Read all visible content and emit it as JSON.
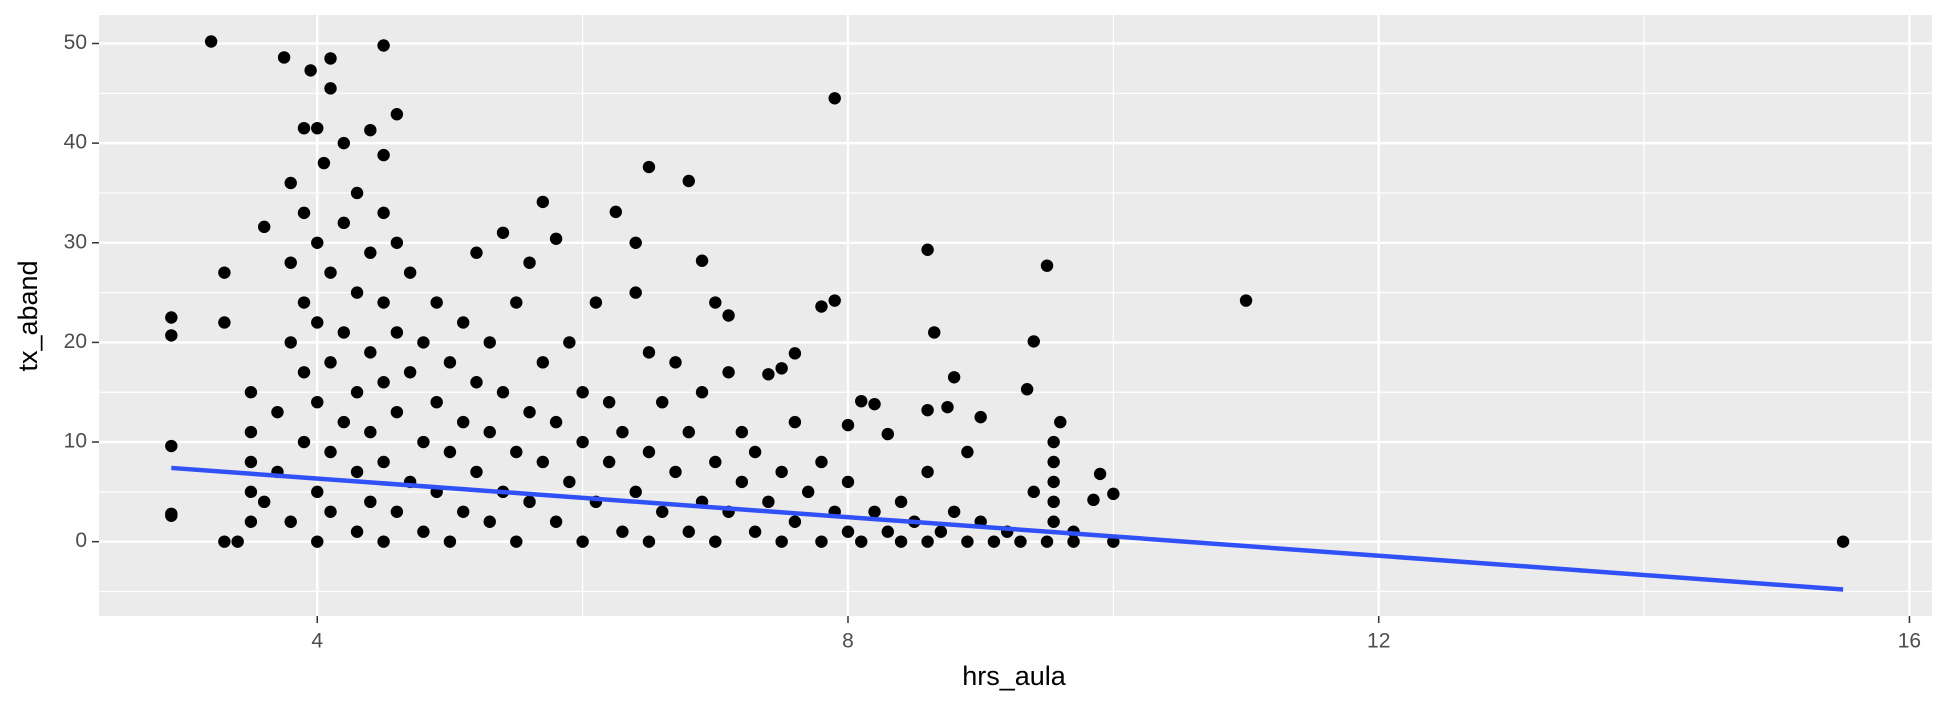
{
  "chart_data": {
    "type": "scatter",
    "x_label": "hrs_aula",
    "y_label": "tx_aband",
    "xlim": [
      2.355,
      16.17
    ],
    "ylim": [
      -7.46,
      52.86
    ],
    "xticks": [
      4,
      8,
      12,
      16
    ],
    "yticks": [
      0,
      10,
      20,
      30,
      40,
      50
    ],
    "xminor": [
      6,
      10,
      14
    ],
    "yminor": [
      -5,
      5,
      15,
      25,
      35,
      45
    ],
    "grid": true,
    "color": "#000000",
    "points": [
      [
        2.9,
        22.5
      ],
      [
        2.9,
        20.7
      ],
      [
        2.9,
        9.6
      ],
      [
        2.9,
        2.8
      ],
      [
        2.9,
        2.6
      ],
      [
        3.2,
        50.2
      ],
      [
        3.3,
        27
      ],
      [
        3.3,
        22
      ],
      [
        3.5,
        15
      ],
      [
        3.6,
        31.6
      ],
      [
        3.75,
        48.6
      ],
      [
        3.9,
        41.5
      ],
      [
        3.95,
        47.3
      ],
      [
        4.1,
        48.5
      ],
      [
        4.1,
        45.5
      ],
      [
        4.0,
        41.5
      ],
      [
        4.4,
        41.3
      ],
      [
        4.5,
        49.8
      ],
      [
        4.6,
        42.9
      ],
      [
        4.5,
        38.8
      ],
      [
        5.7,
        34.1
      ],
      [
        5.8,
        30.4
      ],
      [
        6.25,
        33.1
      ],
      [
        6.5,
        37.6
      ],
      [
        6.8,
        36.2
      ],
      [
        7.9,
        44.5
      ],
      [
        6.4,
        30
      ],
      [
        6.9,
        28.2
      ],
      [
        7.0,
        24
      ],
      [
        7.1,
        22.7
      ],
      [
        7.8,
        23.6
      ],
      [
        7.9,
        24.2
      ],
      [
        8.6,
        29.3
      ],
      [
        8.65,
        21
      ],
      [
        8.8,
        16.5
      ],
      [
        9.5,
        27.7
      ],
      [
        9.4,
        20.1
      ],
      [
        9.35,
        15.3
      ],
      [
        9.0,
        12.5
      ],
      [
        11.0,
        24.2
      ],
      [
        15.5,
        0
      ],
      [
        9.9,
        6.8
      ],
      [
        10.0,
        4.8
      ],
      [
        9.85,
        4.2
      ],
      [
        10.0,
        0
      ],
      [
        8.75,
        13.5
      ],
      [
        8.6,
        13.2
      ],
      [
        8.1,
        14.1
      ],
      [
        8.2,
        13.8
      ],
      [
        8.0,
        11.7
      ],
      [
        8.3,
        10.8
      ],
      [
        7.6,
        18.9
      ],
      [
        7.5,
        17.4
      ],
      [
        7.4,
        16.8
      ],
      [
        3.3,
        0
      ],
      [
        3.4,
        0
      ],
      [
        3.5,
        2
      ],
      [
        3.5,
        5
      ],
      [
        3.5,
        8
      ],
      [
        3.5,
        11
      ],
      [
        3.6,
        4
      ],
      [
        3.7,
        7
      ],
      [
        3.7,
        13
      ],
      [
        3.8,
        20
      ],
      [
        3.8,
        28
      ],
      [
        3.8,
        36
      ],
      [
        3.8,
        2
      ],
      [
        3.9,
        10
      ],
      [
        3.9,
        17
      ],
      [
        3.9,
        24
      ],
      [
        3.9,
        33
      ],
      [
        4.0,
        0
      ],
      [
        4.0,
        5
      ],
      [
        4.0,
        14
      ],
      [
        4.0,
        22
      ],
      [
        4.0,
        30
      ],
      [
        4.05,
        38
      ],
      [
        4.1,
        3
      ],
      [
        4.1,
        9
      ],
      [
        4.1,
        18
      ],
      [
        4.1,
        27
      ],
      [
        4.2,
        12
      ],
      [
        4.2,
        21
      ],
      [
        4.2,
        32
      ],
      [
        4.2,
        40
      ],
      [
        4.3,
        1
      ],
      [
        4.3,
        7
      ],
      [
        4.3,
        15
      ],
      [
        4.3,
        25
      ],
      [
        4.3,
        35
      ],
      [
        4.4,
        4
      ],
      [
        4.4,
        11
      ],
      [
        4.4,
        19
      ],
      [
        4.4,
        29
      ],
      [
        4.5,
        0
      ],
      [
        4.5,
        8
      ],
      [
        4.5,
        16
      ],
      [
        4.5,
        24
      ],
      [
        4.5,
        33
      ],
      [
        4.6,
        3
      ],
      [
        4.6,
        13
      ],
      [
        4.6,
        21
      ],
      [
        4.6,
        30
      ],
      [
        4.7,
        6
      ],
      [
        4.7,
        17
      ],
      [
        4.7,
        27
      ],
      [
        4.8,
        1
      ],
      [
        4.8,
        10
      ],
      [
        4.8,
        20
      ],
      [
        4.9,
        5
      ],
      [
        4.9,
        14
      ],
      [
        4.9,
        24
      ],
      [
        5.0,
        0
      ],
      [
        5.0,
        9
      ],
      [
        5.0,
        18
      ],
      [
        5.1,
        3
      ],
      [
        5.1,
        12
      ],
      [
        5.1,
        22
      ],
      [
        5.2,
        7
      ],
      [
        5.2,
        16
      ],
      [
        5.2,
        29
      ],
      [
        5.3,
        2
      ],
      [
        5.3,
        11
      ],
      [
        5.3,
        20
      ],
      [
        5.4,
        5
      ],
      [
        5.4,
        15
      ],
      [
        5.4,
        31
      ],
      [
        5.5,
        0
      ],
      [
        5.5,
        9
      ],
      [
        5.5,
        24
      ],
      [
        5.6,
        4
      ],
      [
        5.6,
        13
      ],
      [
        5.6,
        28
      ],
      [
        5.7,
        8
      ],
      [
        5.7,
        18
      ],
      [
        5.8,
        2
      ],
      [
        5.8,
        12
      ],
      [
        5.9,
        6
      ],
      [
        5.9,
        20
      ],
      [
        6.0,
        0
      ],
      [
        6.0,
        10
      ],
      [
        6.0,
        15
      ],
      [
        6.1,
        4
      ],
      [
        6.1,
        24
      ],
      [
        6.2,
        8
      ],
      [
        6.2,
        14
      ],
      [
        6.3,
        1
      ],
      [
        6.3,
        11
      ],
      [
        6.4,
        5
      ],
      [
        6.4,
        25
      ],
      [
        6.5,
        0
      ],
      [
        6.5,
        9
      ],
      [
        6.5,
        19
      ],
      [
        6.6,
        3
      ],
      [
        6.6,
        14
      ],
      [
        6.7,
        7
      ],
      [
        6.7,
        18
      ],
      [
        6.8,
        1
      ],
      [
        6.8,
        11
      ],
      [
        6.9,
        4
      ],
      [
        6.9,
        15
      ],
      [
        7.0,
        0
      ],
      [
        7.0,
        8
      ],
      [
        7.1,
        3
      ],
      [
        7.1,
        17
      ],
      [
        7.2,
        6
      ],
      [
        7.2,
        11
      ],
      [
        7.3,
        1
      ],
      [
        7.3,
        9
      ],
      [
        7.4,
        4
      ],
      [
        7.5,
        0
      ],
      [
        7.5,
        7
      ],
      [
        7.6,
        2
      ],
      [
        7.6,
        12
      ],
      [
        7.7,
        5
      ],
      [
        7.8,
        0
      ],
      [
        7.8,
        8
      ],
      [
        7.9,
        3
      ],
      [
        8.0,
        1
      ],
      [
        8.0,
        6
      ],
      [
        8.1,
        0
      ],
      [
        8.2,
        3
      ],
      [
        8.3,
        1
      ],
      [
        8.4,
        0
      ],
      [
        8.4,
        4
      ],
      [
        8.5,
        2
      ],
      [
        8.6,
        0
      ],
      [
        8.6,
        7
      ],
      [
        8.7,
        1
      ],
      [
        8.8,
        3
      ],
      [
        8.9,
        0
      ],
      [
        8.9,
        9
      ],
      [
        9.0,
        2
      ],
      [
        9.1,
        0
      ],
      [
        9.2,
        1
      ],
      [
        9.3,
        0
      ],
      [
        9.4,
        5
      ],
      [
        9.5,
        0
      ],
      [
        9.55,
        2
      ],
      [
        9.55,
        4
      ],
      [
        9.55,
        6
      ],
      [
        9.55,
        8
      ],
      [
        9.55,
        10
      ],
      [
        9.6,
        12
      ],
      [
        9.7,
        1
      ],
      [
        9.7,
        0
      ]
    ],
    "fit_line": [
      [
        2.9,
        7.4
      ],
      [
        15.5,
        -4.8
      ]
    ],
    "fit_color": "#3050f8"
  }
}
